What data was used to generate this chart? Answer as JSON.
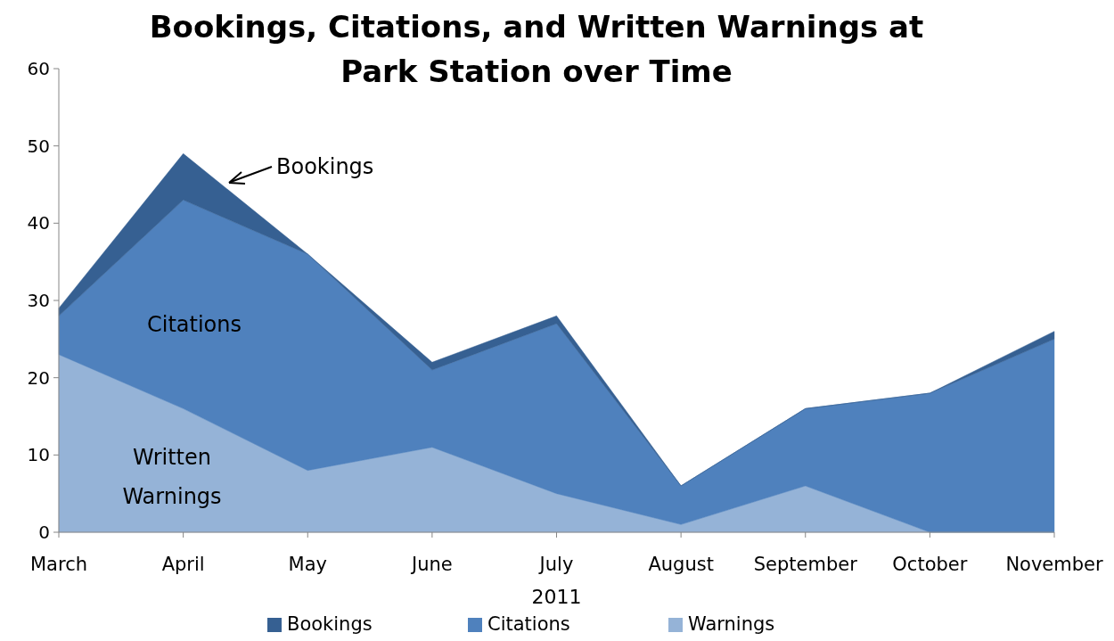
{
  "chart_data": {
    "type": "area",
    "stacked": true,
    "title": "Bookings, Citations, and Written Warnings at Park Station over Time",
    "xlabel": "2011",
    "categories": [
      "March",
      "April",
      "May",
      "June",
      "July",
      "August",
      "September",
      "October",
      "November"
    ],
    "series": [
      {
        "name": "Warnings",
        "color": "#95b3d7",
        "values": [
          23,
          16,
          8,
          11,
          5,
          1,
          6,
          0,
          0
        ]
      },
      {
        "name": "Citations",
        "color": "#4f81bd",
        "values": [
          5,
          27,
          28,
          10,
          22,
          5,
          10,
          18,
          25
        ]
      },
      {
        "name": "Bookings",
        "color": "#366092",
        "values": [
          1,
          6,
          0,
          1,
          1,
          0,
          0,
          0,
          1
        ]
      }
    ],
    "ylim": [
      0,
      60
    ],
    "yticks": [
      0,
      10,
      20,
      30,
      40,
      50,
      60
    ],
    "legend": "bottom",
    "annotations": [
      "Bookings",
      "Citations",
      "Written Warnings"
    ]
  }
}
